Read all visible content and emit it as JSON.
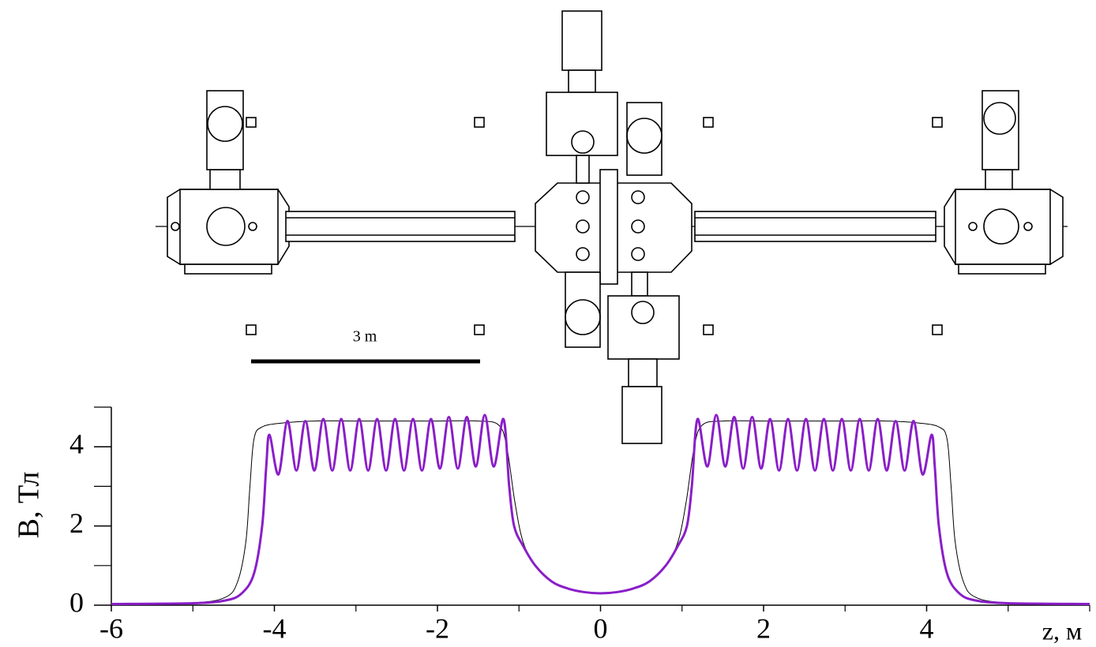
{
  "chart_data": {
    "type": "line",
    "xlim": [
      -6,
      6
    ],
    "ylim": [
      0,
      5
    ],
    "xticks": [
      -6,
      -4,
      -2,
      0,
      2,
      4
    ],
    "xminor": [
      -5,
      -3,
      -1,
      1,
      3,
      5,
      6
    ],
    "yticks": [
      0,
      2,
      4
    ],
    "yminor": [
      1,
      3,
      5
    ],
    "xlabel": "z, м",
    "ylabel": "B, Тл",
    "annotation": "3 m",
    "series": [
      {
        "color": "#000000",
        "line_width": 1,
        "x": [
          -6,
          -5,
          -4.6,
          -4.45,
          -4.35,
          -4.3,
          -4.25,
          -4.15,
          -3.9,
          -3.5,
          -3.0,
          -2.5,
          -2.0,
          -1.5,
          -1.25,
          -1.15,
          -1.05,
          -0.95,
          -0.8,
          -0.6,
          -0.4,
          -0.2,
          0,
          0.2,
          0.4,
          0.6,
          0.8,
          0.95,
          1.05,
          1.15,
          1.25,
          1.5,
          2.0,
          2.5,
          3.0,
          3.5,
          3.9,
          4.15,
          4.25,
          4.3,
          4.35,
          4.45,
          4.6,
          5,
          6
        ],
        "values": [
          0.03,
          0.06,
          0.2,
          0.6,
          1.6,
          3.0,
          4.2,
          4.5,
          4.6,
          4.65,
          4.65,
          4.65,
          4.65,
          4.65,
          4.55,
          4.0,
          2.6,
          1.6,
          1.0,
          0.6,
          0.42,
          0.33,
          0.3,
          0.33,
          0.42,
          0.6,
          1.0,
          1.6,
          2.6,
          4.0,
          4.55,
          4.65,
          4.65,
          4.65,
          4.65,
          4.65,
          4.6,
          4.5,
          4.2,
          3.0,
          1.6,
          0.6,
          0.2,
          0.06,
          0.03
        ]
      },
      {
        "color": "#8a1ec8",
        "line_width": 3,
        "x": [
          -6,
          -5,
          -4.6,
          -4.4,
          -4.25,
          -4.15,
          -4.1,
          -4.06,
          -3.95,
          -3.84,
          -3.73,
          -3.62,
          -3.51,
          -3.4,
          -3.29,
          -3.18,
          -3.07,
          -2.96,
          -2.85,
          -2.74,
          -2.63,
          -2.52,
          -2.41,
          -2.3,
          -2.19,
          -2.08,
          -1.97,
          -1.86,
          -1.75,
          -1.64,
          -1.53,
          -1.42,
          -1.31,
          -1.19,
          -1.12,
          -1.06,
          -0.95,
          -0.8,
          -0.6,
          -0.4,
          -0.2,
          0,
          0.2,
          0.4,
          0.6,
          0.8,
          0.95,
          1.06,
          1.12,
          1.19,
          1.31,
          1.42,
          1.53,
          1.64,
          1.75,
          1.86,
          1.97,
          2.08,
          2.19,
          2.3,
          2.41,
          2.52,
          2.63,
          2.74,
          2.85,
          2.96,
          3.07,
          3.18,
          3.29,
          3.4,
          3.51,
          3.62,
          3.73,
          3.84,
          3.95,
          4.06,
          4.1,
          4.15,
          4.25,
          4.4,
          4.6,
          5,
          6
        ],
        "values": [
          0.03,
          0.05,
          0.12,
          0.3,
          0.8,
          2.0,
          3.5,
          4.3,
          3.3,
          4.65,
          3.4,
          4.65,
          3.4,
          4.7,
          3.4,
          4.7,
          3.4,
          4.7,
          3.4,
          4.7,
          3.4,
          4.7,
          3.4,
          4.7,
          3.4,
          4.7,
          3.45,
          4.75,
          3.45,
          4.75,
          3.5,
          4.8,
          3.5,
          4.7,
          3.0,
          2.0,
          1.5,
          1.0,
          0.6,
          0.42,
          0.33,
          0.3,
          0.33,
          0.42,
          0.6,
          1.0,
          1.5,
          2.0,
          3.0,
          4.7,
          3.5,
          4.8,
          3.5,
          4.75,
          3.45,
          4.75,
          3.45,
          4.7,
          3.4,
          4.7,
          3.4,
          4.7,
          3.4,
          4.7,
          3.4,
          4.7,
          3.4,
          4.7,
          3.4,
          4.7,
          3.4,
          4.65,
          3.4,
          4.65,
          3.3,
          4.3,
          3.5,
          2.0,
          0.8,
          0.3,
          0.12,
          0.05,
          0.03
        ]
      }
    ]
  }
}
